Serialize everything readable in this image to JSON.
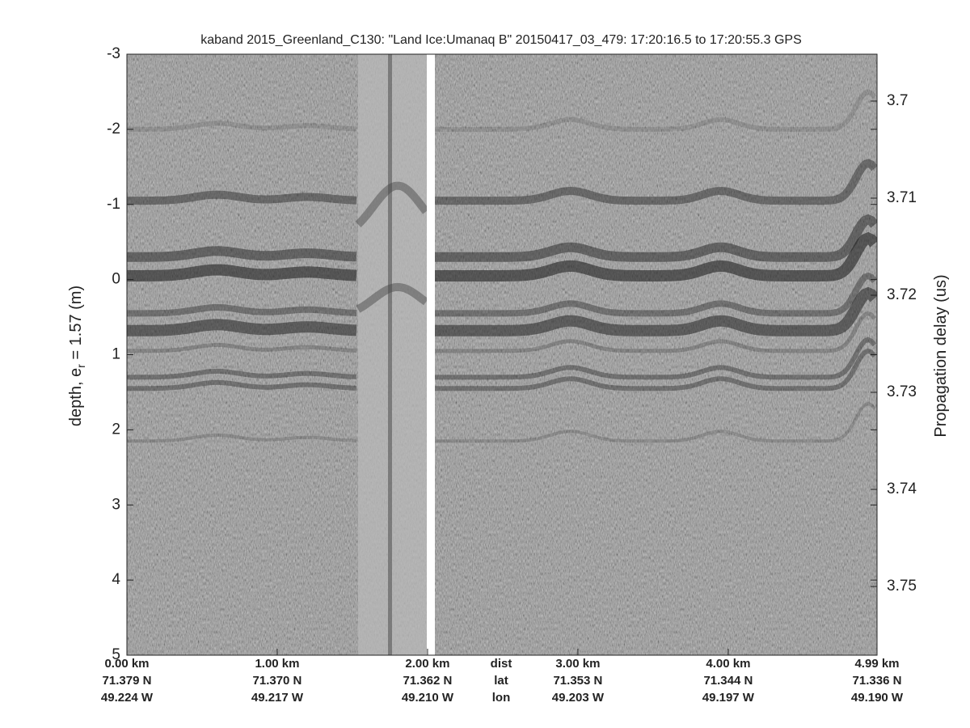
{
  "chart_data": {
    "type": "echogram",
    "title": "kaband 2015_Greenland_C130: \"Land Ice:Umanaq B\"  20150417_03_479: 17:20:16.5 to 17:20:55.3 GPS",
    "ylabel": {
      "text": "depth, e",
      "sub": "r",
      "rest": " = 1.57 (m)"
    },
    "y2label": "Propagation delay (us)",
    "ylim": [
      -3,
      5
    ],
    "yticks": [
      -3,
      -2,
      -1,
      0,
      1,
      2,
      3,
      4,
      5
    ],
    "y2lim": [
      3.69517,
      3.75708
    ],
    "y2ticks": [
      3.7,
      3.71,
      3.72,
      3.73,
      3.74,
      3.75
    ],
    "xlim": [
      0,
      4.99
    ],
    "xticks": [
      {
        "value": 0,
        "label": "0.00 km"
      },
      {
        "value": 1,
        "label": "1.00 km"
      },
      {
        "value": 2,
        "label": "2.00 km"
      },
      {
        "value": 3,
        "label": "3.00 km"
      },
      {
        "value": 4,
        "label": "4.00 km"
      },
      {
        "value": 4.99,
        "label": "4.99 km"
      }
    ],
    "lat": [
      "71.379 N",
      "71.370 N",
      "71.362 N",
      "71.353 N",
      "71.344 N",
      "71.336 N"
    ],
    "lon": [
      "49.224 W",
      "49.217 W",
      "49.210 W",
      "49.203 W",
      "49.197 W",
      "49.190 W"
    ],
    "row_labels": [
      "dist",
      "lat",
      "lon"
    ]
  }
}
